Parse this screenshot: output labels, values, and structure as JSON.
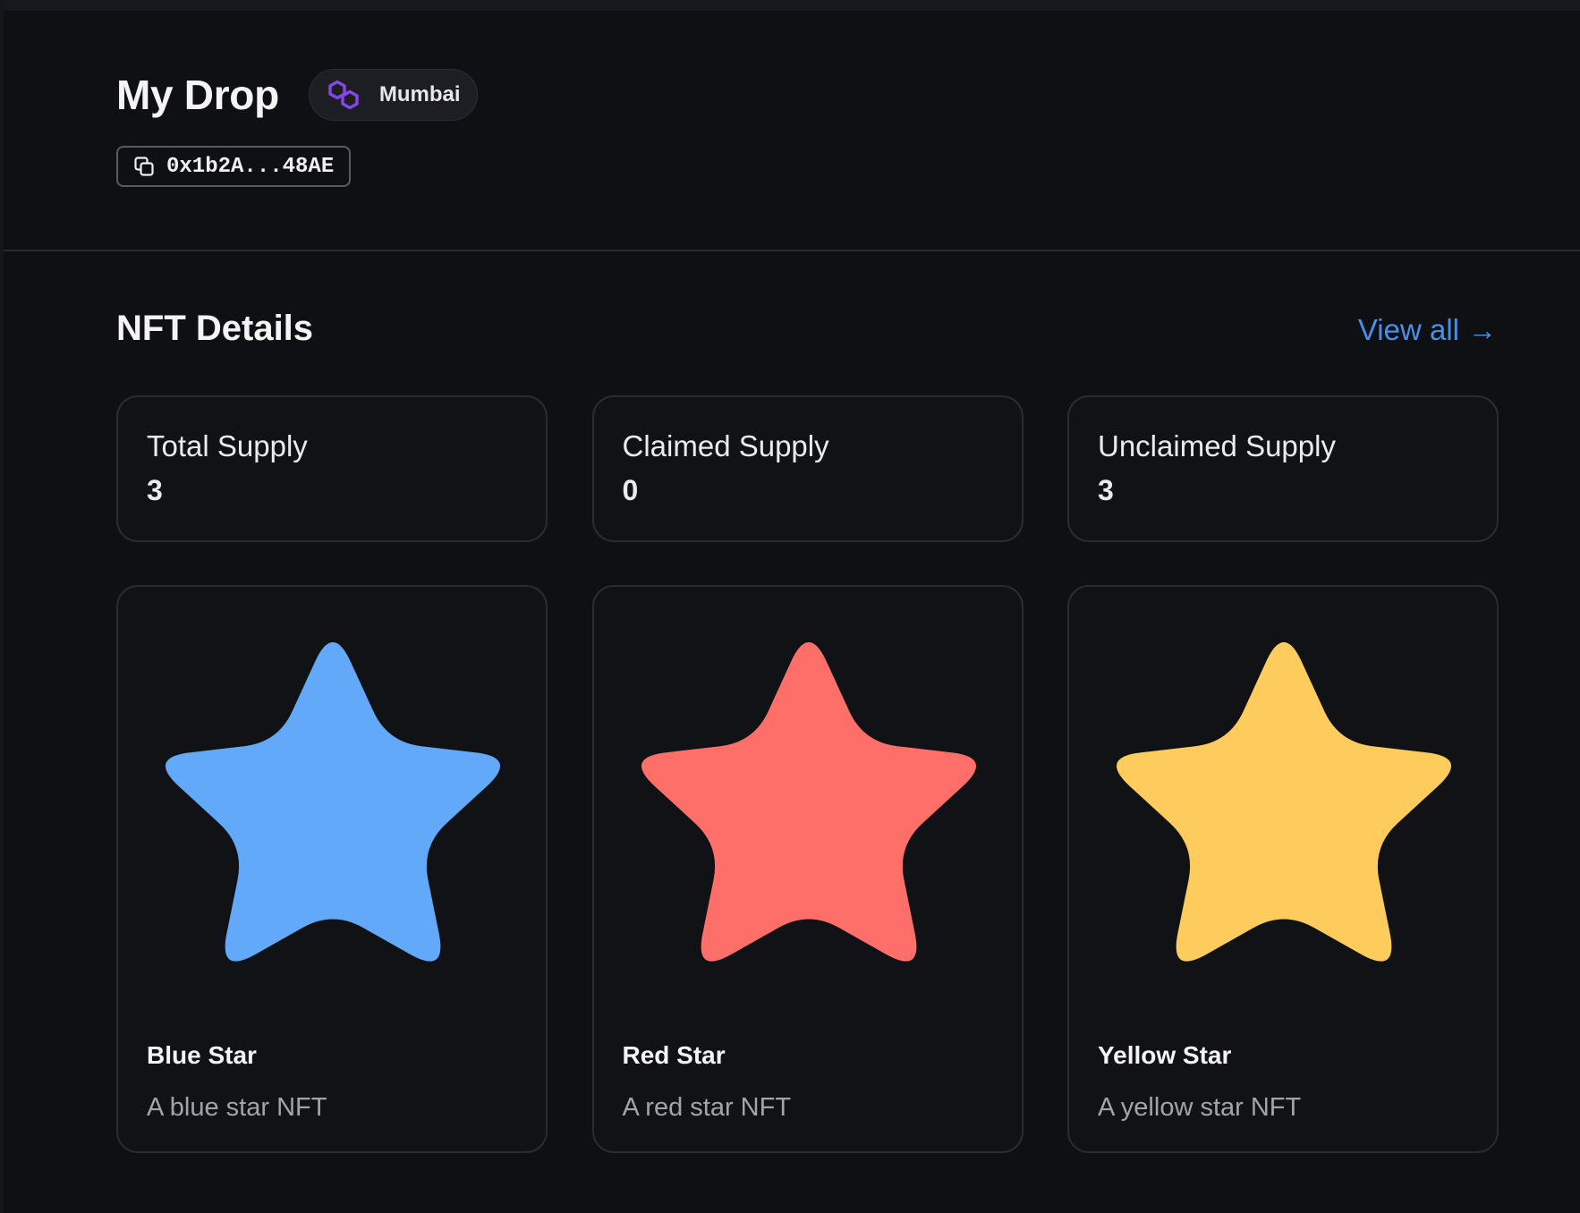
{
  "header": {
    "title": "My Drop",
    "network": {
      "label": "Mumbai",
      "icon": "polygon-icon",
      "icon_color": "#8247e5"
    },
    "address": {
      "value": "0x1b2A...48AE",
      "icon": "copy-icon"
    }
  },
  "section": {
    "title": "NFT Details",
    "view_all_label": "View all",
    "view_all_icon": "arrow-right-icon",
    "link_color": "#4a8fe7"
  },
  "stats": [
    {
      "label": "Total Supply",
      "value": "3"
    },
    {
      "label": "Claimed Supply",
      "value": "0"
    },
    {
      "label": "Unclaimed Supply",
      "value": "3"
    }
  ],
  "nfts": [
    {
      "name": "Blue Star",
      "description": "A blue star NFT",
      "color": "#63a9f9",
      "icon": "star-icon"
    },
    {
      "name": "Red Star",
      "description": "A red star NFT",
      "color": "#ff6f69",
      "icon": "star-icon"
    },
    {
      "name": "Yellow Star",
      "description": "A yellow star NFT",
      "color": "#fecc5c",
      "icon": "star-icon"
    }
  ],
  "colors": {
    "background": "#0f1014",
    "card_border": "#2b2c32",
    "text_primary": "#f4f4f5",
    "text_secondary": "#a3a4aa"
  }
}
